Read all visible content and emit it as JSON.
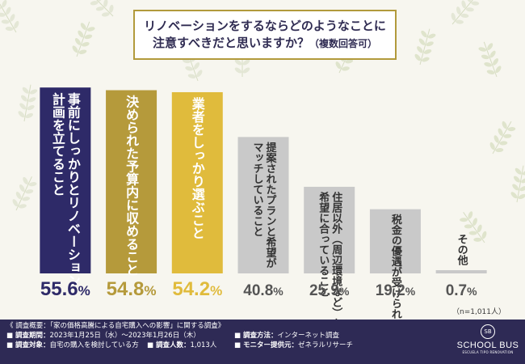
{
  "title": {
    "line1": "リノベーションをするならどのようなことに",
    "line2": "注意すべきだと思いますか？",
    "line2_suffix": "（複数回答可）"
  },
  "chart_data": {
    "type": "bar",
    "categories": [
      "事前にしっかりとリノベーション計画を立てること",
      "決められた予算内に収めること",
      "業者をしっかり選ぶこと",
      "提案されたプランと希望がマッチしていること",
      "住居以外（周辺環境など）も希望に合っていること",
      "税金の優遇が受けられること",
      "その他"
    ],
    "label_lines": [
      [
        "事前にしっかりとリノベーション",
        "計画を立てること"
      ],
      [
        "決められた予算内に収めること"
      ],
      [
        "業者をしっかり選ぶこと"
      ],
      [
        "提案されたプランと希望が",
        "マッチしていること"
      ],
      [
        "住居以外（周辺環境など）も",
        "希望に合っていること"
      ],
      [
        "税金の優遇が受けられること"
      ],
      [
        "その他"
      ]
    ],
    "values": [
      55.6,
      54.8,
      54.2,
      40.8,
      25.9,
      19.2,
      0.7
    ],
    "value_labels": [
      "55.6%",
      "54.8%",
      "54.2%",
      "40.8%",
      "25.9%",
      "19.2%",
      "0.7%"
    ],
    "colors": [
      "#2e2a68",
      "#b59a3b",
      "#e0bb3c",
      "#c9c9c9",
      "#c9c9c9",
      "#c9c9c9",
      "#c9c9c9"
    ],
    "value_colors": [
      "#2e2a68",
      "#b59a3b",
      "#e0bb3c",
      "#555555",
      "#555555",
      "#555555",
      "#555555"
    ],
    "ylim": [
      0,
      60
    ],
    "grid": false,
    "legend": "none"
  },
  "sample_note": "（n=1,011人）",
  "footer": {
    "overview": "《 調査概要：「家の価格高騰による自宅購入への影響」に関する調査》",
    "period_key": "■ 調査期間：",
    "period_val": "2023年1月25日（水）〜2023年1月26日（木）",
    "method_key": "■ 調査方法：",
    "method_val": "インターネット調査",
    "target_key": "■ 調査対象：",
    "target_val": "自宅の購入を検討している方",
    "count_key": "■ 調査人数：",
    "count_val": "1,013人",
    "monitor_key": "■ モニター提供元：",
    "monitor_val": "ゼネラルリサーチ"
  },
  "logo": {
    "mark": "SB",
    "name": "SCHOOL BUS",
    "tagline": "ESCUELA TIPO RENOVATION"
  }
}
